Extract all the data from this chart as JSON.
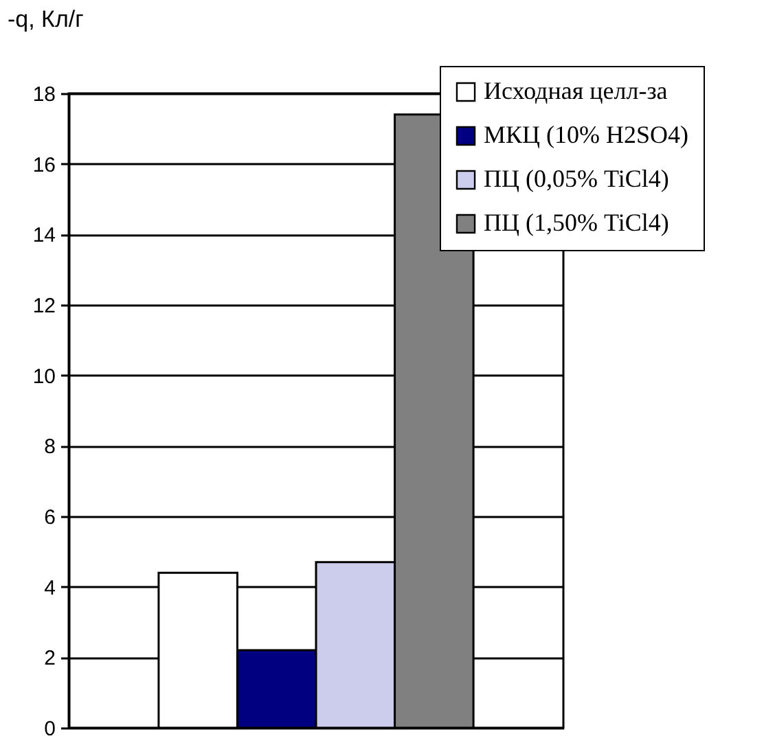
{
  "chart_data": {
    "type": "bar",
    "ylabel": "-q, Кл/г",
    "categories": [
      null
    ],
    "series": [
      {
        "name": "Исходная целл-за",
        "color": "#ffffff",
        "values": [
          4.4
        ]
      },
      {
        "name": "МКЦ (10% H2SO4)",
        "color": "#000080",
        "values": [
          2.2
        ]
      },
      {
        "name": "ПЦ (0,05% TiCl4)",
        "color": "#ccccec",
        "values": [
          4.7
        ]
      },
      {
        "name": "ПЦ (1,50% TiCl4)",
        "color": "#808080",
        "values": [
          17.4
        ]
      }
    ],
    "ylim": [
      0,
      18
    ],
    "yticks": [
      0,
      2,
      4,
      6,
      8,
      10,
      12,
      14,
      16,
      18
    ],
    "grid": "y",
    "legend": "top right"
  }
}
